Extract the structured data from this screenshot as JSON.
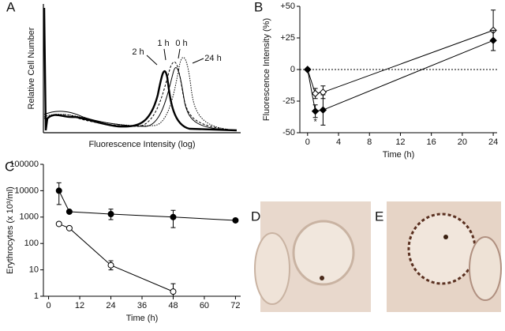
{
  "chart_data": [
    {
      "type": "histogram-overlay",
      "panel_label": "A",
      "xlabel": "Fluorescence Intensity (log)",
      "ylabel": "Relative Cell Number",
      "annotations": [
        "1 h",
        "0 h",
        "2 h",
        "24 h"
      ]
    },
    {
      "type": "line",
      "panel_label": "B",
      "xlabel": "Time (h)",
      "ylabel": "Fluorescence Intensity (%)",
      "xlim": [
        -1,
        24.5
      ],
      "ylim": [
        -50,
        50
      ],
      "xticks": [
        0,
        4,
        8,
        12,
        16,
        20,
        24
      ],
      "yticks": [
        {
          "value": 50,
          "label": "+50"
        },
        {
          "value": 25,
          "label": "+25"
        },
        0,
        -25,
        -50
      ],
      "zero_line": true,
      "log_y": false,
      "series": [
        {
          "marker": "diamond-open",
          "color": "#000000",
          "x": [
            0,
            1,
            2,
            24
          ],
          "values": [
            0,
            -19,
            -18,
            31
          ],
          "errors": [
            null,
            4,
            5,
            16
          ]
        },
        {
          "marker": "diamond-filled",
          "color": "#000000",
          "x": [
            0,
            1,
            2,
            24
          ],
          "values": [
            0,
            -33,
            -32,
            23
          ],
          "errors": [
            null,
            5,
            12,
            8
          ]
        }
      ],
      "annotations": [
        "*"
      ]
    },
    {
      "type": "line",
      "panel_label": "C",
      "xlabel": "Time (h)",
      "ylabel": "Erythrocytes (x 10³/ml)",
      "xlim": [
        -2,
        74
      ],
      "ylim": [
        1,
        100000
      ],
      "xticks": [
        0,
        12,
        24,
        36,
        48,
        60,
        72
      ],
      "yticks": [
        1,
        10,
        100,
        1000,
        10000,
        100000
      ],
      "log_y": true,
      "zero_line": false,
      "series": [
        {
          "marker": "circle-filled",
          "color": "#000000",
          "x": [
            4,
            8,
            24,
            48,
            72
          ],
          "values": [
            10000,
            1600,
            1300,
            1000,
            750
          ],
          "error_ranges": [
            [
              3000,
              20000
            ],
            null,
            [
              800,
              2000
            ],
            [
              400,
              1800
            ],
            null
          ]
        },
        {
          "marker": "circle-open",
          "color": "#000000",
          "x": [
            4,
            8,
            24,
            48
          ],
          "values": [
            550,
            380,
            15,
            1.5
          ],
          "error_ranges": [
            null,
            null,
            [
              10,
              22
            ],
            [
              1,
              3
            ]
          ]
        }
      ]
    }
  ],
  "images": [
    {
      "label": "D"
    },
    {
      "label": "E"
    }
  ]
}
